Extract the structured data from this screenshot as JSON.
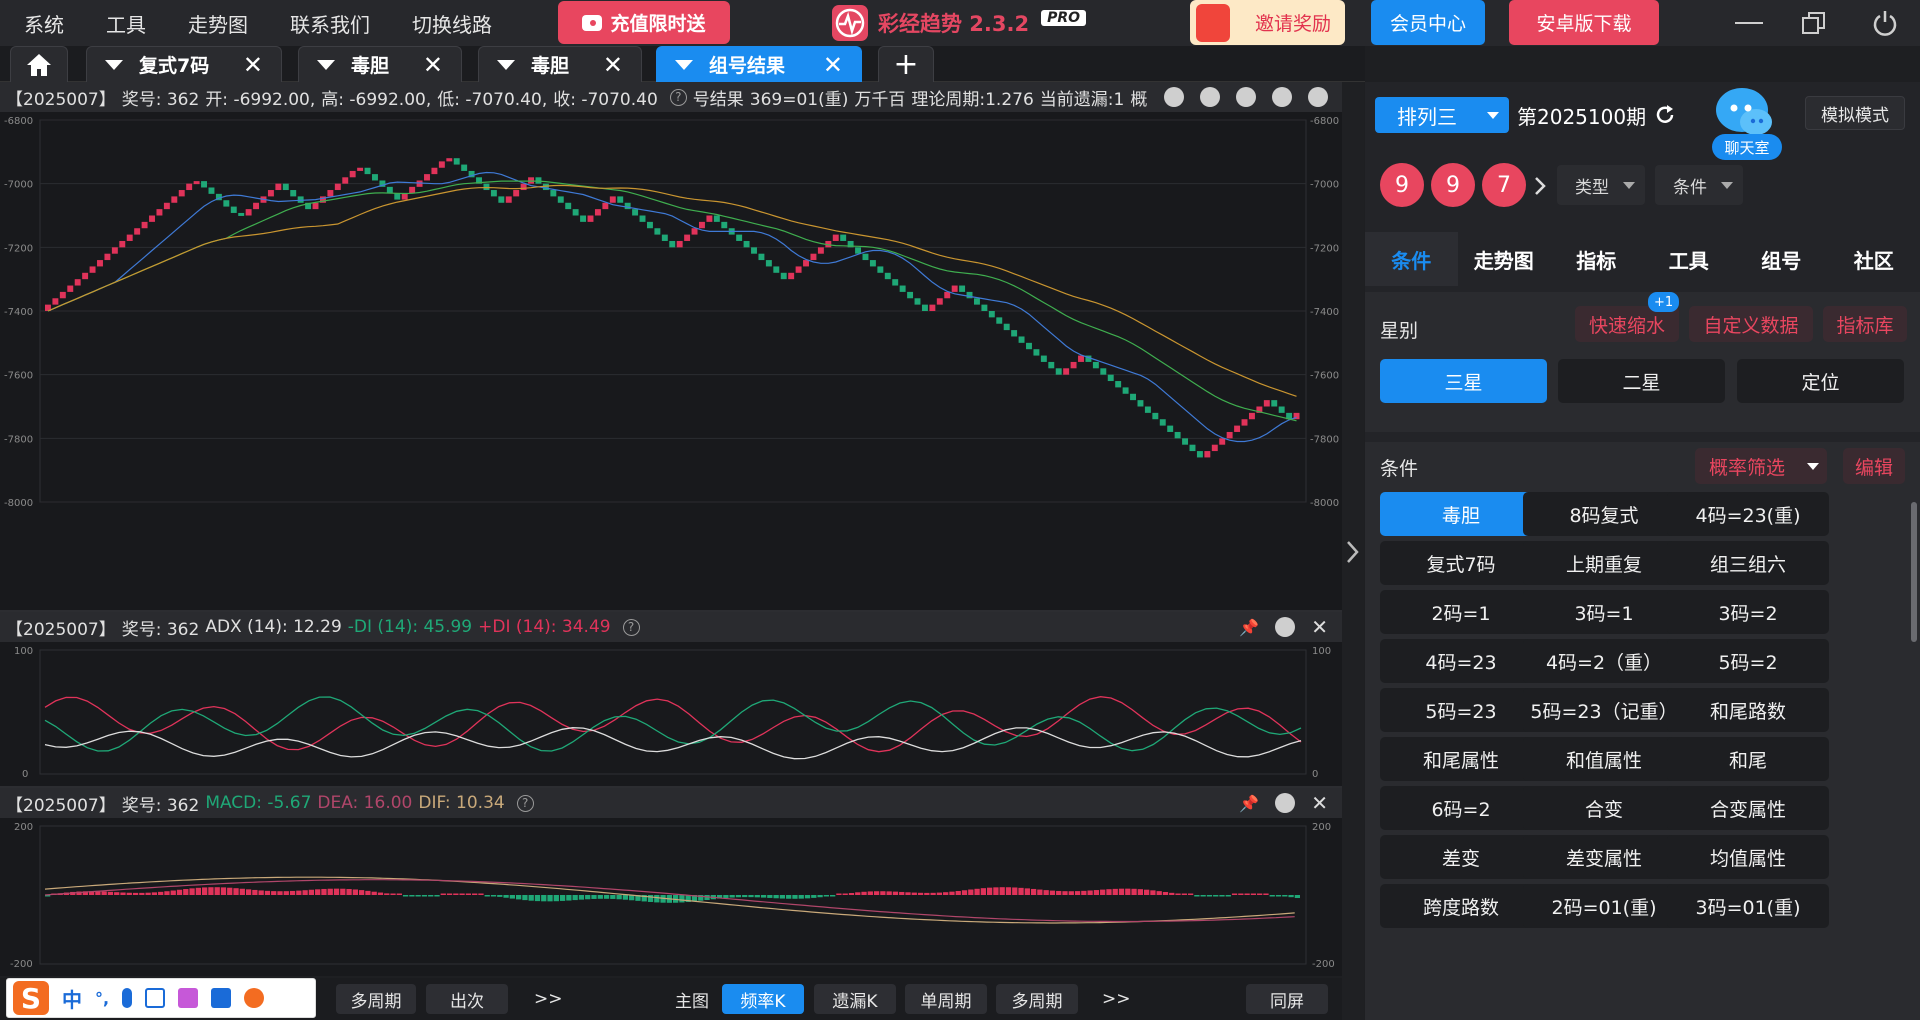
{
  "menu": [
    "系统",
    "工具",
    "走势图",
    "联系我们",
    "切换线路"
  ],
  "promo_label": "充值限时送",
  "app": {
    "title": "彩经趋势 2.3.2",
    "badge": "PRO"
  },
  "invite_label": "邀请奖励",
  "member_label": "会员中心",
  "android_label": "安卓版下载",
  "tabs": [
    {
      "label": "复式7码",
      "active": false
    },
    {
      "label": "毒胆",
      "active": false
    },
    {
      "label": "毒胆",
      "active": false
    },
    {
      "label": "组号结果",
      "active": true
    }
  ],
  "main_chart": {
    "header": {
      "period": "【2025007】",
      "award": "奖号: 362",
      "open": "开: -6992.00,",
      "high": "高: -6992.00,",
      "low": "低: -7070.40,",
      "close": "收: -7070.40",
      "result": "号结果",
      "combo": "369=01(重)",
      "pos": "万千百",
      "cycle": "理论周期:1.276",
      "miss": "当前遗漏:1",
      "extra": "概"
    },
    "yticks": [
      "-6800",
      "-7000",
      "-7200",
      "-7400",
      "-7600",
      "-7800",
      "-8000"
    ]
  },
  "adx_chart": {
    "period": "【2025007】",
    "award": "奖号: 362",
    "adx": "ADX (14): 12.29",
    "mdi": "-DI (14): 45.99",
    "pdi": "+DI (14): 34.49",
    "yticks": [
      "100",
      "0"
    ]
  },
  "macd_chart": {
    "period": "【2025007】",
    "award": "奖号: 362",
    "macd": "MACD: -5.67",
    "dea": "DEA: 16.00",
    "dif": "DIF: 10.34",
    "yticks": [
      "200",
      "-200"
    ]
  },
  "bottom": {
    "left_buttons": [
      "多周期",
      "出次"
    ],
    "more": ">>",
    "main_label": "主图",
    "mid_buttons": [
      {
        "label": "频率K",
        "active": true
      },
      {
        "label": "遗漏K",
        "active": false
      },
      {
        "label": "单周期",
        "active": false
      },
      {
        "label": "多周期",
        "active": false
      }
    ],
    "more2": ">>",
    "same_screen": "同屏"
  },
  "ime": {
    "label1": "中",
    "label2": "°,"
  },
  "right": {
    "lottery": "排列三",
    "period": "第2025100期",
    "chat_label": "聊天室",
    "sim_label": "模拟模式",
    "balls": [
      "9",
      "9",
      "7"
    ],
    "type_label": "类型",
    "cond_label": "条件",
    "tabs": [
      {
        "label": "条件",
        "active": true
      },
      {
        "label": "走势图",
        "active": false
      },
      {
        "label": "指标",
        "active": false
      },
      {
        "label": "工具",
        "active": false
      },
      {
        "label": "组号",
        "active": false
      },
      {
        "label": "社区",
        "active": false
      }
    ],
    "star_title": "星别",
    "quick": "快速缩水",
    "quick_badge": "+1",
    "custom": "自定义数据",
    "lib": "指标库",
    "stars": [
      {
        "label": "三星",
        "active": true
      },
      {
        "label": "二星",
        "active": false
      },
      {
        "label": "定位",
        "active": false
      }
    ],
    "cond_title": "条件",
    "prob_filter": "概率筛选",
    "edit": "编辑",
    "conditions": [
      "毒胆",
      "8码复式",
      "4码=23(重)",
      "复式7码",
      "上期重复",
      "组三组六",
      "2码=1",
      "3码=1",
      "3码=2",
      "4码=23",
      "4码=2（重）",
      "5码=2",
      "5码=23",
      "5码=23（记重）",
      "和尾路数",
      "和尾属性",
      "和值属性",
      "和尾",
      "6码=2",
      "合变",
      "合变属性",
      "差变",
      "差变属性",
      "均值属性",
      "跨度路数",
      "2码=01(重)",
      "3码=01(重)"
    ]
  },
  "colors": {
    "accent": "#1a8cf0",
    "red": "#e8465f",
    "up": "#e0335a",
    "down": "#1fa877"
  }
}
